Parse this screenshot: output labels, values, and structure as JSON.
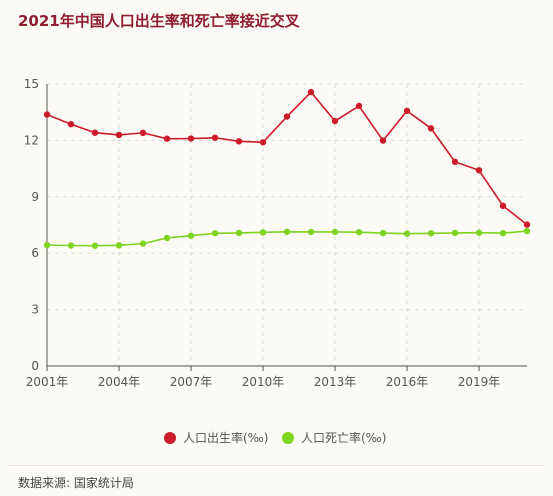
{
  "title": "2021年中国人口出生率和死亡率接近交叉",
  "source": "数据来源: 国家统计局",
  "chart_data": {
    "type": "line",
    "x": [
      2001,
      2002,
      2003,
      2004,
      2005,
      2006,
      2007,
      2008,
      2009,
      2010,
      2011,
      2012,
      2013,
      2014,
      2015,
      2016,
      2017,
      2018,
      2019,
      2020,
      2021
    ],
    "x_tick_labels": [
      "2001年",
      "2004年",
      "2007年",
      "2010年",
      "2013年",
      "2016年",
      "2019年"
    ],
    "x_tick_values": [
      2001,
      2004,
      2007,
      2010,
      2013,
      2016,
      2019
    ],
    "xlim": [
      2001,
      2021
    ],
    "ylim": [
      0,
      15
    ],
    "y_ticks": [
      0,
      3,
      6,
      9,
      12,
      15
    ],
    "grid": true,
    "legend_position": "bottom-center",
    "series": [
      {
        "name": "人口出生率(‰)",
        "color": "#cc1b2b",
        "values": [
          13.38,
          12.86,
          12.41,
          12.29,
          12.4,
          12.09,
          12.1,
          12.14,
          11.95,
          11.9,
          13.27,
          14.57,
          13.03,
          13.83,
          11.99,
          13.57,
          12.64,
          10.86,
          10.41,
          8.52,
          7.52
        ]
      },
      {
        "name": "人口死亡率(‰)",
        "color": "#7fd321",
        "values": [
          6.43,
          6.41,
          6.4,
          6.42,
          6.51,
          6.81,
          6.93,
          7.06,
          7.08,
          7.11,
          7.14,
          7.13,
          7.13,
          7.12,
          7.07,
          7.04,
          7.06,
          7.08,
          7.09,
          7.07,
          7.18
        ]
      }
    ]
  }
}
